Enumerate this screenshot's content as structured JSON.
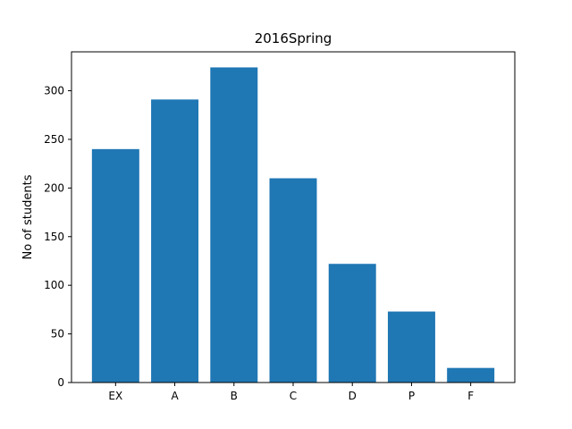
{
  "chart_data": {
    "type": "bar",
    "title": "2016Spring",
    "xlabel": "",
    "ylabel": "No of students",
    "categories": [
      "EX",
      "A",
      "B",
      "C",
      "D",
      "P",
      "F"
    ],
    "values": [
      240,
      291,
      324,
      210,
      122,
      73,
      15
    ],
    "ylim": [
      0,
      340
    ],
    "yticks": [
      0,
      50,
      100,
      150,
      200,
      250,
      300
    ],
    "grid": false,
    "legend": "none",
    "bar_color": "#1f77b4"
  }
}
